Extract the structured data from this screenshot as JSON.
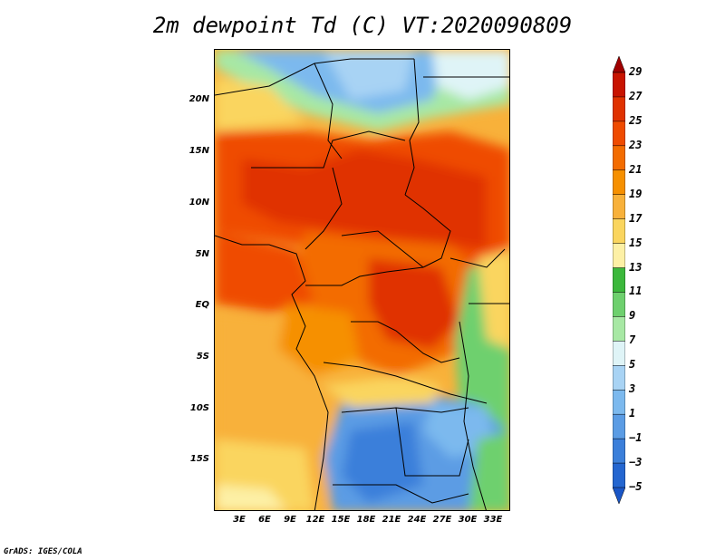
{
  "title": "2m dewpoint Td (C) VT:2020090809",
  "footer": "GrADS: IGES/COLA",
  "map": {
    "lat_labels": [
      "20N",
      "15N",
      "10N",
      "5N",
      "EQ",
      "5S",
      "10S",
      "15S"
    ],
    "lon_labels": [
      "3E",
      "6E",
      "9E",
      "12E",
      "15E",
      "18E",
      "21E",
      "24E",
      "27E",
      "30E",
      "33E"
    ]
  },
  "colorbar": {
    "levels": [
      "29",
      "27",
      "25",
      "23",
      "21",
      "19",
      "17",
      "15",
      "13",
      "11",
      "9",
      "7",
      "5",
      "3",
      "1",
      "−1",
      "−3",
      "−5"
    ],
    "colors": [
      "#a00000",
      "#c81400",
      "#e03200",
      "#ef4b00",
      "#f36c00",
      "#f69000",
      "#f8b13a",
      "#fad55e",
      "#fdf0a5",
      "#3cb83c",
      "#6ed06e",
      "#a7e8a4",
      "#dff4f7",
      "#a8d3f4",
      "#7cb9ee",
      "#5b9ce4",
      "#3b7fda",
      "#2466d0",
      "#1a56c6"
    ]
  }
}
